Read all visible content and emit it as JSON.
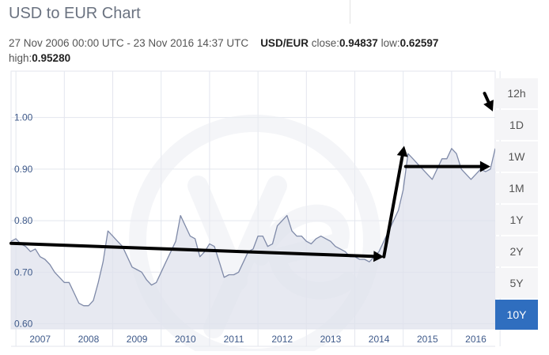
{
  "header": {
    "title": "USD to EUR Chart",
    "period": "27 Nov 2006 00:00 UTC - 23 Nov 2016 14:37 UTC",
    "pair": "USD/EUR",
    "close_label": "close:",
    "close_value": "0.94837",
    "low_label": "low:",
    "low_value": "0.62597",
    "high_label": "high:",
    "high_value": "0.95280"
  },
  "range_buttons": [
    {
      "label": "12h",
      "active": false
    },
    {
      "label": "1D",
      "active": false
    },
    {
      "label": "1W",
      "active": false
    },
    {
      "label": "1M",
      "active": false
    },
    {
      "label": "1Y",
      "active": false
    },
    {
      "label": "2Y",
      "active": false
    },
    {
      "label": "5Y",
      "active": false
    },
    {
      "label": "10Y",
      "active": true
    }
  ],
  "colors": {
    "line": "#7f8aa8",
    "area": "#dfe2ec",
    "grid": "#e3e6ee",
    "axis_label": "#3f5a8a",
    "annotation": "#000000",
    "active_button": "#2f6ebf"
  },
  "chart_data": {
    "type": "area",
    "title": "",
    "xlabel": "",
    "ylabel": "",
    "xlim": [
      2006.9,
      2016.9
    ],
    "ylim": [
      0.59,
      1.09
    ],
    "yticks": [
      0.6,
      0.7,
      0.8,
      0.9,
      1.0
    ],
    "ytick_labels": [
      "0.60",
      "0.70",
      "0.80",
      "0.90",
      "1.00"
    ],
    "xtick_labels": [
      "2007",
      "2008",
      "2009",
      "2010",
      "2011",
      "2012",
      "2013",
      "2014",
      "2015",
      "2016"
    ],
    "grid": true,
    "series": [
      {
        "x": [
          2006.9,
          2007.0,
          2007.1,
          2007.2,
          2007.3,
          2007.4,
          2007.5,
          2007.6,
          2007.7,
          2007.8,
          2007.9,
          2008.0,
          2008.1,
          2008.2,
          2008.3,
          2008.4,
          2008.5,
          2008.6,
          2008.7,
          2008.8,
          2008.9,
          2009.0,
          2009.1,
          2009.2,
          2009.3,
          2009.4,
          2009.5,
          2009.6,
          2009.7,
          2009.8,
          2009.9,
          2010.0,
          2010.1,
          2010.2,
          2010.3,
          2010.4,
          2010.5,
          2010.6,
          2010.7,
          2010.8,
          2010.9,
          2011.0,
          2011.1,
          2011.2,
          2011.3,
          2011.4,
          2011.5,
          2011.6,
          2011.7,
          2011.8,
          2011.9,
          2012.0,
          2012.1,
          2012.2,
          2012.3,
          2012.4,
          2012.5,
          2012.6,
          2012.7,
          2012.8,
          2012.9,
          2013.0,
          2013.1,
          2013.2,
          2013.3,
          2013.4,
          2013.5,
          2013.6,
          2013.7,
          2013.8,
          2013.9,
          2014.0,
          2014.1,
          2014.2,
          2014.3,
          2014.4,
          2014.5,
          2014.6,
          2014.7,
          2014.8,
          2014.9,
          2015.0,
          2015.1,
          2015.2,
          2015.3,
          2015.4,
          2015.5,
          2015.6,
          2015.7,
          2015.8,
          2015.9,
          2016.0,
          2016.1,
          2016.2,
          2016.3,
          2016.4,
          2016.5,
          2016.6,
          2016.7,
          2016.8,
          2016.9
        ],
        "values": [
          0.76,
          0.765,
          0.755,
          0.75,
          0.74,
          0.745,
          0.73,
          0.725,
          0.715,
          0.7,
          0.69,
          0.68,
          0.68,
          0.66,
          0.64,
          0.635,
          0.635,
          0.645,
          0.68,
          0.72,
          0.78,
          0.77,
          0.76,
          0.75,
          0.73,
          0.71,
          0.705,
          0.7,
          0.685,
          0.675,
          0.68,
          0.7,
          0.72,
          0.74,
          0.76,
          0.81,
          0.79,
          0.77,
          0.765,
          0.73,
          0.74,
          0.755,
          0.75,
          0.72,
          0.69,
          0.695,
          0.695,
          0.7,
          0.72,
          0.74,
          0.745,
          0.77,
          0.77,
          0.75,
          0.755,
          0.79,
          0.8,
          0.81,
          0.78,
          0.77,
          0.77,
          0.76,
          0.755,
          0.765,
          0.77,
          0.765,
          0.76,
          0.75,
          0.745,
          0.74,
          0.73,
          0.73,
          0.725,
          0.725,
          0.72,
          0.73,
          0.74,
          0.76,
          0.78,
          0.8,
          0.82,
          0.86,
          0.93,
          0.92,
          0.91,
          0.9,
          0.89,
          0.88,
          0.9,
          0.92,
          0.92,
          0.94,
          0.93,
          0.9,
          0.89,
          0.88,
          0.89,
          0.9,
          0.895,
          0.9,
          0.94
        ]
      }
    ],
    "annotations": [
      {
        "type": "arrow",
        "from": [
          2006.9,
          0.756
        ],
        "to": [
          2014.6,
          0.73
        ]
      },
      {
        "type": "arrow",
        "from": [
          2014.6,
          0.73
        ],
        "to": [
          2015.02,
          0.945
        ]
      },
      {
        "type": "arrow",
        "from": [
          2015.05,
          0.905
        ],
        "to": [
          2016.8,
          0.905
        ]
      },
      {
        "type": "arrow",
        "from": [
          2016.68,
          1.047
        ],
        "to": [
          2016.85,
          1.012
        ]
      }
    ]
  }
}
